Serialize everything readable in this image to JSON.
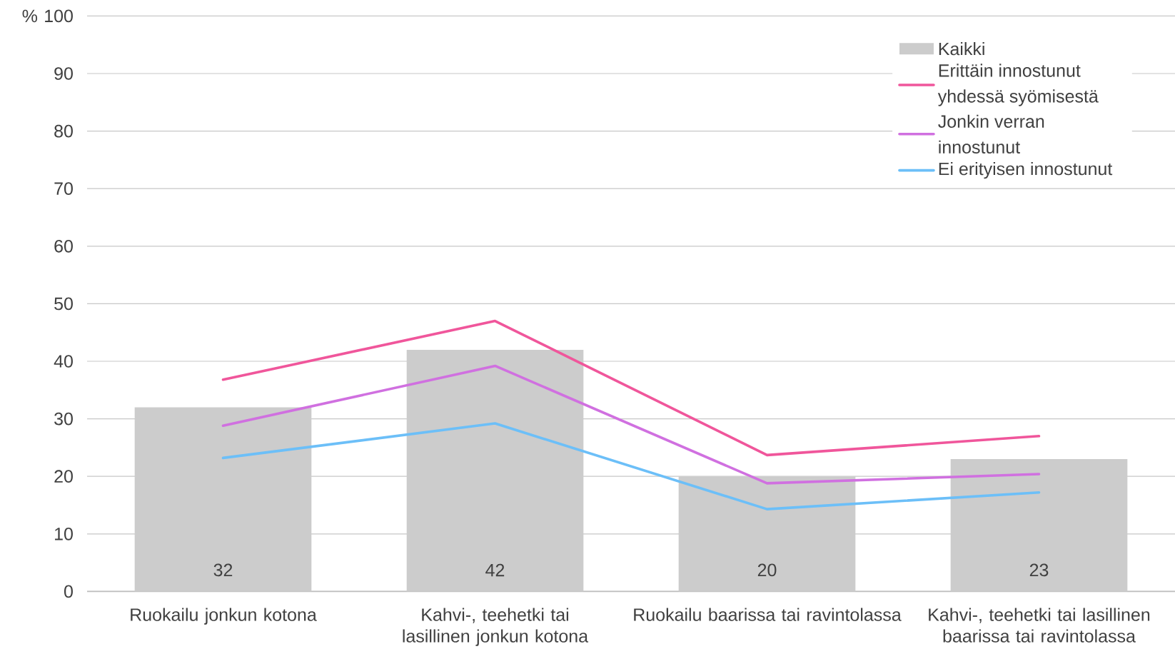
{
  "chart_data": {
    "type": "bar",
    "ylabel": "%",
    "categories": [
      "Ruokailu jonkun kotona",
      "Kahvi-, teehetki tai lasillinen jonkun kotona",
      "Ruokailu baarissa tai ravintolassa",
      "Kahvi-, teehetki tai lasillinen baarissa tai ravintolassa"
    ],
    "series": [
      {
        "name": "Kaikki",
        "color": "#cccccc",
        "values": [
          32,
          42,
          20,
          23
        ],
        "value_labels": [
          "32",
          "42",
          "20",
          "23"
        ]
      },
      {
        "name": "Erittäin innostunut yhdessä syömisestä",
        "type": "line",
        "color": "#f0569b",
        "values": [
          36.8,
          47.0,
          23.7,
          27.0
        ]
      },
      {
        "name": "Jonkin verran innostunut",
        "type": "line",
        "color": "#d070e0",
        "values": [
          28.8,
          39.2,
          18.8,
          20.4
        ]
      },
      {
        "name": "Ei erityisen innostunut",
        "type": "line",
        "color": "#6cbff8",
        "values": [
          23.2,
          29.2,
          14.3,
          17.2
        ]
      }
    ],
    "ylim": [
      0,
      100
    ],
    "yticks": [
      0,
      10,
      20,
      30,
      40,
      50,
      60,
      70,
      80,
      90,
      100
    ],
    "grid": "y",
    "legend": "top right",
    "marker": "none",
    "line_style": "solid"
  }
}
